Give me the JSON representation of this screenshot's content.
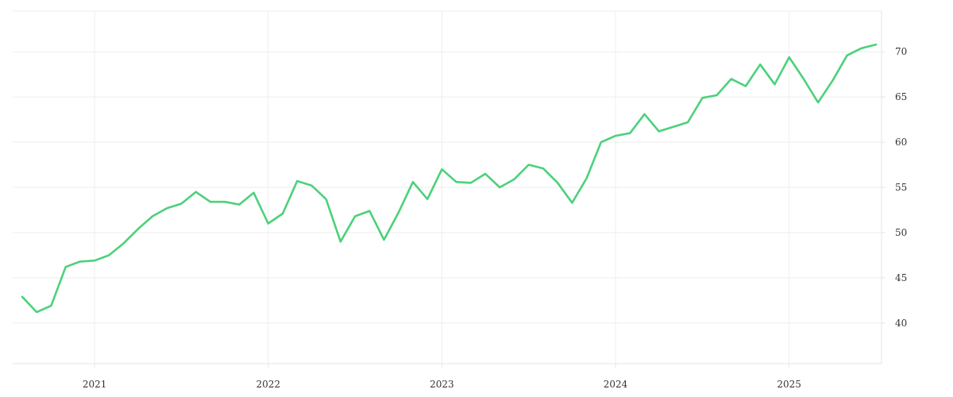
{
  "chart_data": {
    "type": "line",
    "title": "",
    "xlabel": "",
    "ylabel": "",
    "x_tick_labels": [
      "2021",
      "2022",
      "2023",
      "2024",
      "2025"
    ],
    "y_tick_labels": [
      "40",
      "45",
      "50",
      "55",
      "60",
      "65",
      "70"
    ],
    "y_ticks": [
      40,
      45,
      50,
      55,
      60,
      65,
      70
    ],
    "ylim": [
      35.5,
      74.5
    ],
    "xlim": [
      "2020-08",
      "2025-07"
    ],
    "grid": true,
    "legend": "none",
    "y_axis_position": "right",
    "colors": {
      "line": "#4cd17a"
    },
    "x": [
      "2020-08",
      "2020-09",
      "2020-10",
      "2020-11",
      "2020-12",
      "2021-01",
      "2021-02",
      "2021-03",
      "2021-04",
      "2021-05",
      "2021-06",
      "2021-07",
      "2021-08",
      "2021-09",
      "2021-10",
      "2021-11",
      "2021-12",
      "2022-01",
      "2022-02",
      "2022-03",
      "2022-04",
      "2022-05",
      "2022-06",
      "2022-07",
      "2022-08",
      "2022-09",
      "2022-10",
      "2022-11",
      "2022-12",
      "2023-01",
      "2023-02",
      "2023-03",
      "2023-04",
      "2023-05",
      "2023-06",
      "2023-07",
      "2023-08",
      "2023-09",
      "2023-10",
      "2023-11",
      "2023-12",
      "2024-01",
      "2024-02",
      "2024-03",
      "2024-04",
      "2024-05",
      "2024-06",
      "2024-07",
      "2024-08",
      "2024-09",
      "2024-10",
      "2024-11",
      "2024-12",
      "2025-01",
      "2025-02",
      "2025-03",
      "2025-04",
      "2025-05",
      "2025-06",
      "2025-07"
    ],
    "series": [
      {
        "values": [
          42.9,
          41.2,
          41.9,
          46.2,
          46.8,
          46.9,
          47.5,
          48.8,
          50.4,
          51.8,
          52.7,
          53.2,
          54.5,
          53.4,
          53.4,
          53.1,
          54.4,
          51.0,
          52.1,
          55.7,
          55.2,
          53.7,
          49.0,
          51.8,
          52.4,
          49.2,
          52.2,
          55.6,
          53.7,
          57.0,
          55.6,
          55.5,
          56.5,
          55.0,
          55.9,
          57.5,
          57.1,
          55.5,
          53.3,
          56.0,
          60.0,
          60.7,
          61.0,
          63.1,
          61.2,
          61.7,
          62.2,
          64.9,
          65.2,
          67.0,
          66.2,
          68.6,
          66.4,
          69.4,
          67.0,
          64.4,
          66.8,
          69.6,
          70.4,
          70.8
        ]
      }
    ]
  }
}
